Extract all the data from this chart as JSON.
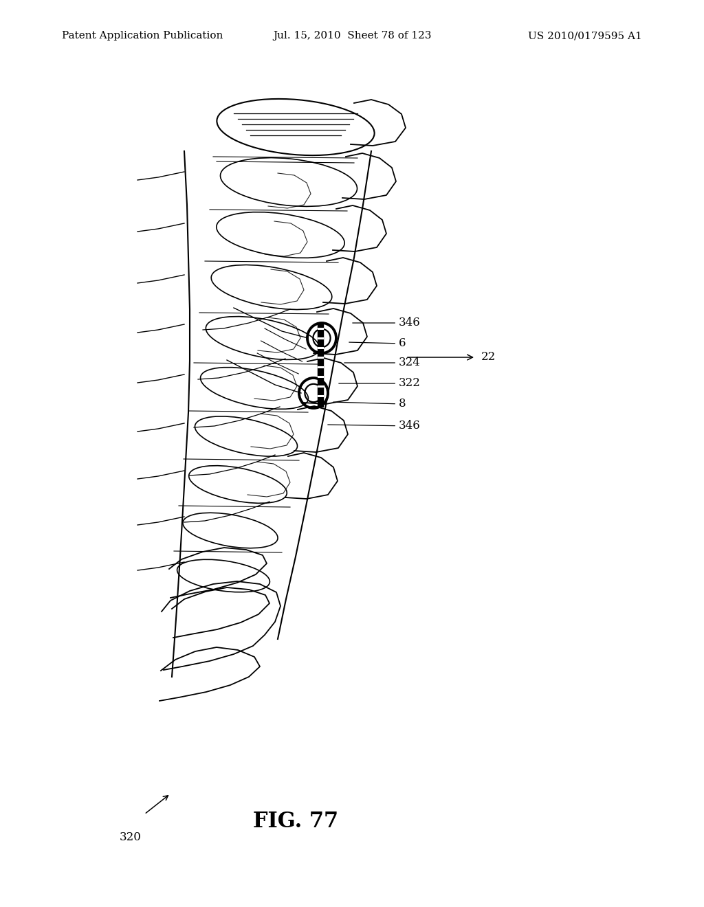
{
  "background_color": "#ffffff",
  "header_left": "Patent Application Publication",
  "header_center": "Jul. 15, 2010  Sheet 78 of 123",
  "header_right": "US 2010/0179595 A1",
  "header_fontsize": 11,
  "fig_label": "FIG. 77",
  "fig_label_fontsize": 22,
  "annotation_fontsize": 12
}
